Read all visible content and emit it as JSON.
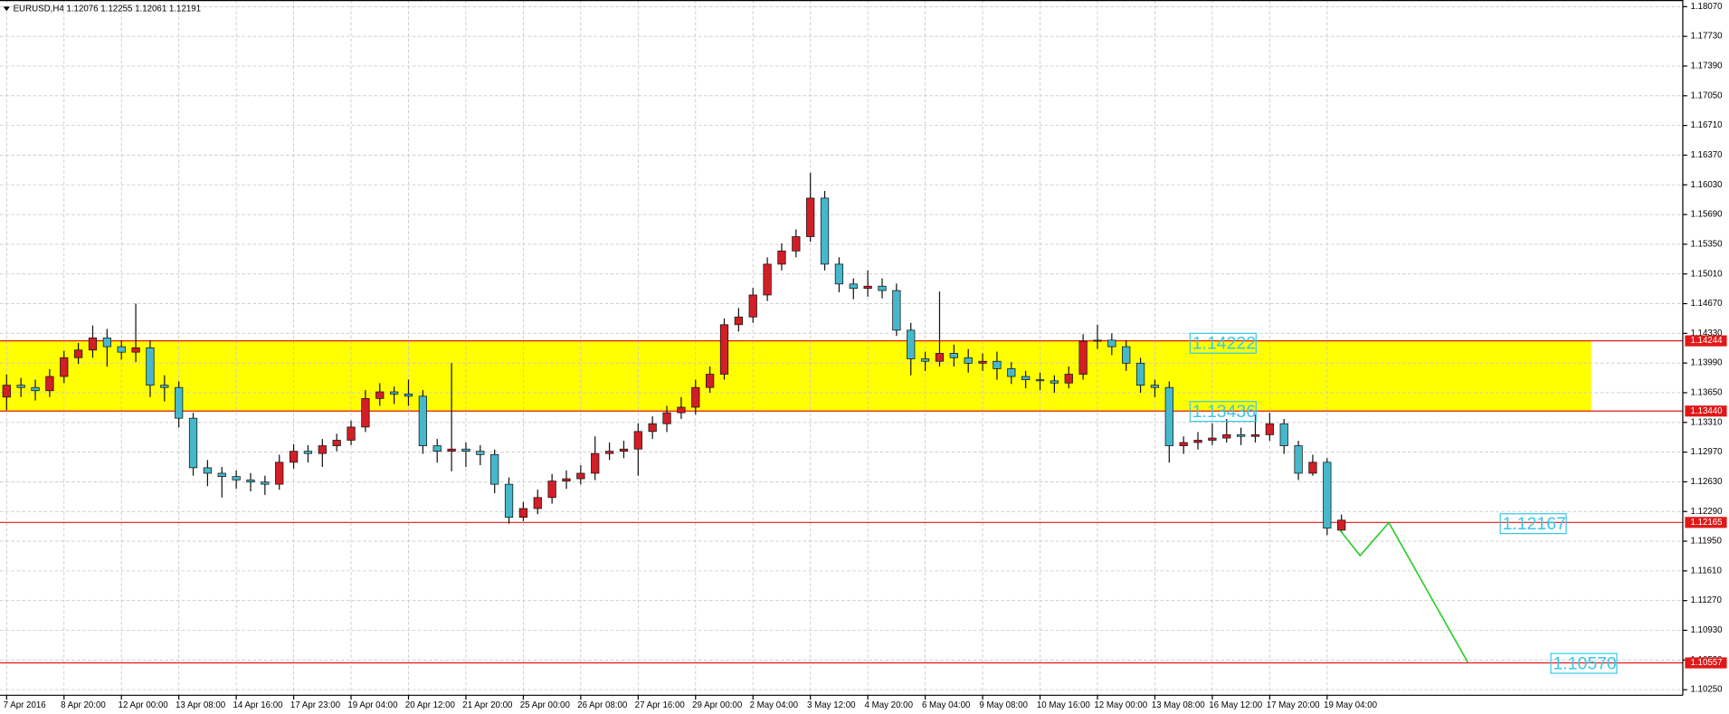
{
  "chart_data": {
    "type": "candlestick",
    "title": "EURUSD,H4  1.12076 1.12255 1.12061 1.12191",
    "up_color": "#d21e26",
    "down_color": "#45b8cc",
    "grid": true,
    "ylim": [
      1.10186,
      1.18146
    ],
    "yticks": [
      {
        "value": 1.1807,
        "label": "1.18070"
      },
      {
        "value": 1.1773,
        "label": "1.17730"
      },
      {
        "value": 1.1739,
        "label": "1.17390"
      },
      {
        "value": 1.1705,
        "label": "1.17050"
      },
      {
        "value": 1.1671,
        "label": "1.16710"
      },
      {
        "value": 1.1637,
        "label": "1.16370"
      },
      {
        "value": 1.1603,
        "label": "1.16030"
      },
      {
        "value": 1.1569,
        "label": "1.15690"
      },
      {
        "value": 1.1535,
        "label": "1.15350"
      },
      {
        "value": 1.1501,
        "label": "1.15010"
      },
      {
        "value": 1.1467,
        "label": "1.14670"
      },
      {
        "value": 1.1433,
        "label": "1.14330"
      },
      {
        "value": 1.1399,
        "label": "1.13990"
      },
      {
        "value": 1.1365,
        "label": "1.13650"
      },
      {
        "value": 1.1331,
        "label": "1.13310"
      },
      {
        "value": 1.1297,
        "label": "1.12970"
      },
      {
        "value": 1.1263,
        "label": "1.12630"
      },
      {
        "value": 1.1229,
        "label": "1.12290"
      },
      {
        "value": 1.1195,
        "label": "1.11950"
      },
      {
        "value": 1.1161,
        "label": "1.11610"
      },
      {
        "value": 1.1127,
        "label": "1.11270"
      },
      {
        "value": 1.1093,
        "label": "1.10930"
      },
      {
        "value": 1.1059,
        "label": "1.10590"
      },
      {
        "value": 1.1025,
        "label": "1.10250"
      }
    ],
    "xticks": [
      {
        "value": 0,
        "label": "7 Apr 2016"
      },
      {
        "value": 4,
        "label": "8 Apr 20:00"
      },
      {
        "value": 8,
        "label": "12 Apr 00:00"
      },
      {
        "value": 12,
        "label": "13 Apr 08:00"
      },
      {
        "value": 16,
        "label": "14 Apr 16:00"
      },
      {
        "value": 20,
        "label": "17 Apr 23:00"
      },
      {
        "value": 24,
        "label": "19 Apr 04:00"
      },
      {
        "value": 28,
        "label": "20 Apr 12:00"
      },
      {
        "value": 32,
        "label": "21 Apr 20:00"
      },
      {
        "value": 36,
        "label": "25 Apr 00:00"
      },
      {
        "value": 40,
        "label": "26 Apr 08:00"
      },
      {
        "value": 44,
        "label": "27 Apr 16:00"
      },
      {
        "value": 48,
        "label": "29 Apr 00:00"
      },
      {
        "value": 52,
        "label": "2 May 04:00"
      },
      {
        "value": 56,
        "label": "3 May 12:00"
      },
      {
        "value": 60,
        "label": "4 May 20:00"
      },
      {
        "value": 64,
        "label": "6 May 04:00"
      },
      {
        "value": 68,
        "label": "9 May 08:00"
      },
      {
        "value": 72,
        "label": "10 May 16:00"
      },
      {
        "value": 76,
        "label": "12 May 00:00"
      },
      {
        "value": 80,
        "label": "13 May 08:00"
      },
      {
        "value": 84,
        "label": "16 May 12:00"
      },
      {
        "value": 88,
        "label": "17 May 20:00"
      },
      {
        "value": 92,
        "label": "19 May 04:00"
      }
    ],
    "open": [
      1.136,
      1.13736,
      1.1371,
      1.13673,
      1.13836,
      1.14051,
      1.14139,
      1.14277,
      1.14177,
      1.14114,
      1.14164,
      1.13736,
      1.1371,
      1.13358,
      1.12791,
      1.12728,
      1.1269,
      1.12652,
      1.12627,
      1.12602,
      1.12854,
      1.1298,
      1.12954,
      1.13043,
      1.13106,
      1.13257,
      1.13584,
      1.1366,
      1.13635,
      1.1361,
      1.13043,
      1.1298,
      1.13005,
      1.1298,
      1.12942,
      1.12602,
      1.12224,
      1.12324,
      1.1245,
      1.12639,
      1.12665,
      1.12728,
      1.12954,
      1.1298,
      1.13005,
      1.13206,
      1.13295,
      1.13421,
      1.13484,
      1.1371,
      1.13862,
      1.14429,
      1.14517,
      1.14769,
      1.15122,
      1.15273,
      1.15437,
      1.15878,
      1.15122,
      1.14895,
      1.14844,
      1.1487,
      1.1482,
      1.14366,
      1.14038,
      1.1401,
      1.14101,
      1.14051,
      1.13988,
      1.1401,
      1.13925,
      1.13836,
      1.13799,
      1.13786,
      1.13761,
      1.13862,
      1.1424,
      1.14252,
      1.14177,
      1.13988,
      1.13736,
      1.1371,
      1.13043,
      1.1308,
      1.13106,
      1.13131,
      1.13169,
      1.1315,
      1.13169,
      1.13295,
      1.13043,
      1.12728,
      1.12854,
      1.12076
    ],
    "high": [
      1.1386,
      1.1382,
      1.138,
      1.1392,
      1.1413,
      1.1422,
      1.1442,
      1.1438,
      1.1425,
      1.1467,
      1.1425,
      1.1385,
      1.1378,
      1.1342,
      1.1288,
      1.128,
      1.1276,
      1.1273,
      1.127,
      1.1294,
      1.1306,
      1.1305,
      1.1312,
      1.1318,
      1.1333,
      1.1368,
      1.1376,
      1.1372,
      1.138,
      1.1368,
      1.1312,
      1.1399,
      1.1308,
      1.1305,
      1.13,
      1.1268,
      1.124,
      1.1254,
      1.1272,
      1.1276,
      1.1282,
      1.1315,
      1.1308,
      1.131,
      1.133,
      1.1338,
      1.135,
      1.136,
      1.138,
      1.1395,
      1.145,
      1.1462,
      1.1485,
      1.152,
      1.1536,
      1.1552,
      1.16168,
      1.1596,
      1.152,
      1.1496,
      1.1505,
      1.1496,
      1.149,
      1.1445,
      1.1412,
      1.14808,
      1.142,
      1.1415,
      1.141,
      1.1412,
      1.14,
      1.139,
      1.1388,
      1.1385,
      1.1395,
      1.1432,
      1.1443,
      1.1433,
      1.1425,
      1.1405,
      1.138,
      1.1378,
      1.1315,
      1.132,
      1.133,
      1.1335,
      1.1325,
      1.134,
      1.1342,
      1.1335,
      1.131,
      1.1294,
      1.129,
      1.12255
    ],
    "low": [
      1.1345,
      1.136,
      1.1356,
      1.136,
      1.1376,
      1.1398,
      1.1405,
      1.1395,
      1.1403,
      1.14,
      1.136,
      1.1355,
      1.1325,
      1.127,
      1.1258,
      1.1245,
      1.1255,
      1.1252,
      1.1248,
      1.1254,
      1.1278,
      1.1285,
      1.128,
      1.1298,
      1.1305,
      1.132,
      1.135,
      1.1352,
      1.135,
      1.1295,
      1.1285,
      1.1275,
      1.128,
      1.1282,
      1.125,
      1.1215,
      1.1218,
      1.1226,
      1.1238,
      1.1255,
      1.126,
      1.1265,
      1.1288,
      1.129,
      1.127,
      1.1312,
      1.132,
      1.1335,
      1.134,
      1.1365,
      1.138,
      1.1435,
      1.1445,
      1.147,
      1.1505,
      1.152,
      1.1538,
      1.1505,
      1.148,
      1.1472,
      1.1475,
      1.1473,
      1.143,
      1.1385,
      1.139,
      1.1395,
      1.1395,
      1.1388,
      1.139,
      1.138,
      1.1375,
      1.137,
      1.1368,
      1.1365,
      1.137,
      1.138,
      1.1415,
      1.1408,
      1.139,
      1.1365,
      1.136,
      1.1285,
      1.1295,
      1.13,
      1.1305,
      1.1308,
      1.1305,
      1.1308,
      1.131,
      1.1295,
      1.1265,
      1.127,
      1.1202,
      1.12061
    ],
    "close": [
      1.13736,
      1.1371,
      1.13673,
      1.13836,
      1.14051,
      1.14139,
      1.14277,
      1.14177,
      1.14114,
      1.14164,
      1.13736,
      1.1371,
      1.13358,
      1.12791,
      1.12728,
      1.1269,
      1.12652,
      1.12627,
      1.12602,
      1.12854,
      1.1298,
      1.12954,
      1.13043,
      1.13106,
      1.13257,
      1.13584,
      1.1366,
      1.13635,
      1.1361,
      1.13043,
      1.1298,
      1.13005,
      1.1298,
      1.12942,
      1.12602,
      1.12224,
      1.12324,
      1.1245,
      1.12639,
      1.12665,
      1.12728,
      1.12954,
      1.1298,
      1.13005,
      1.13206,
      1.13295,
      1.13421,
      1.13484,
      1.1371,
      1.13862,
      1.14429,
      1.14517,
      1.14769,
      1.15122,
      1.15273,
      1.15437,
      1.15878,
      1.15122,
      1.14895,
      1.14844,
      1.1487,
      1.1482,
      1.14366,
      1.14038,
      1.1401,
      1.14101,
      1.14051,
      1.13988,
      1.1401,
      1.13925,
      1.13836,
      1.13799,
      1.13786,
      1.13761,
      1.13862,
      1.1424,
      1.14252,
      1.14177,
      1.13988,
      1.13736,
      1.1371,
      1.13043,
      1.1308,
      1.13106,
      1.13131,
      1.13169,
      1.1315,
      1.13169,
      1.13295,
      1.13043,
      1.12728,
      1.12854,
      1.121,
      1.12191
    ],
    "zone": {
      "color": "#ffff00",
      "ylim": [
        1.1344,
        1.14244
      ],
      "xlim": [
        -0.5,
        110.4
      ]
    },
    "levels": {
      "color": "#e01818",
      "values": [
        1.14244,
        {
          "value": 1.1344,
          "label": "1.13440"
        },
        1.12165,
        1.10557
      ]
    },
    "forecast": {
      "color": "#22cc22",
      "x": [
        92.9,
        94.3,
        96.3,
        101.8
      ],
      "values": [
        1.12075,
        1.11785,
        1.12163,
        1.10564
      ]
    },
    "annotations": [
      "1.14222",
      "1.13436",
      "1.12167",
      "1.10570"
    ]
  }
}
